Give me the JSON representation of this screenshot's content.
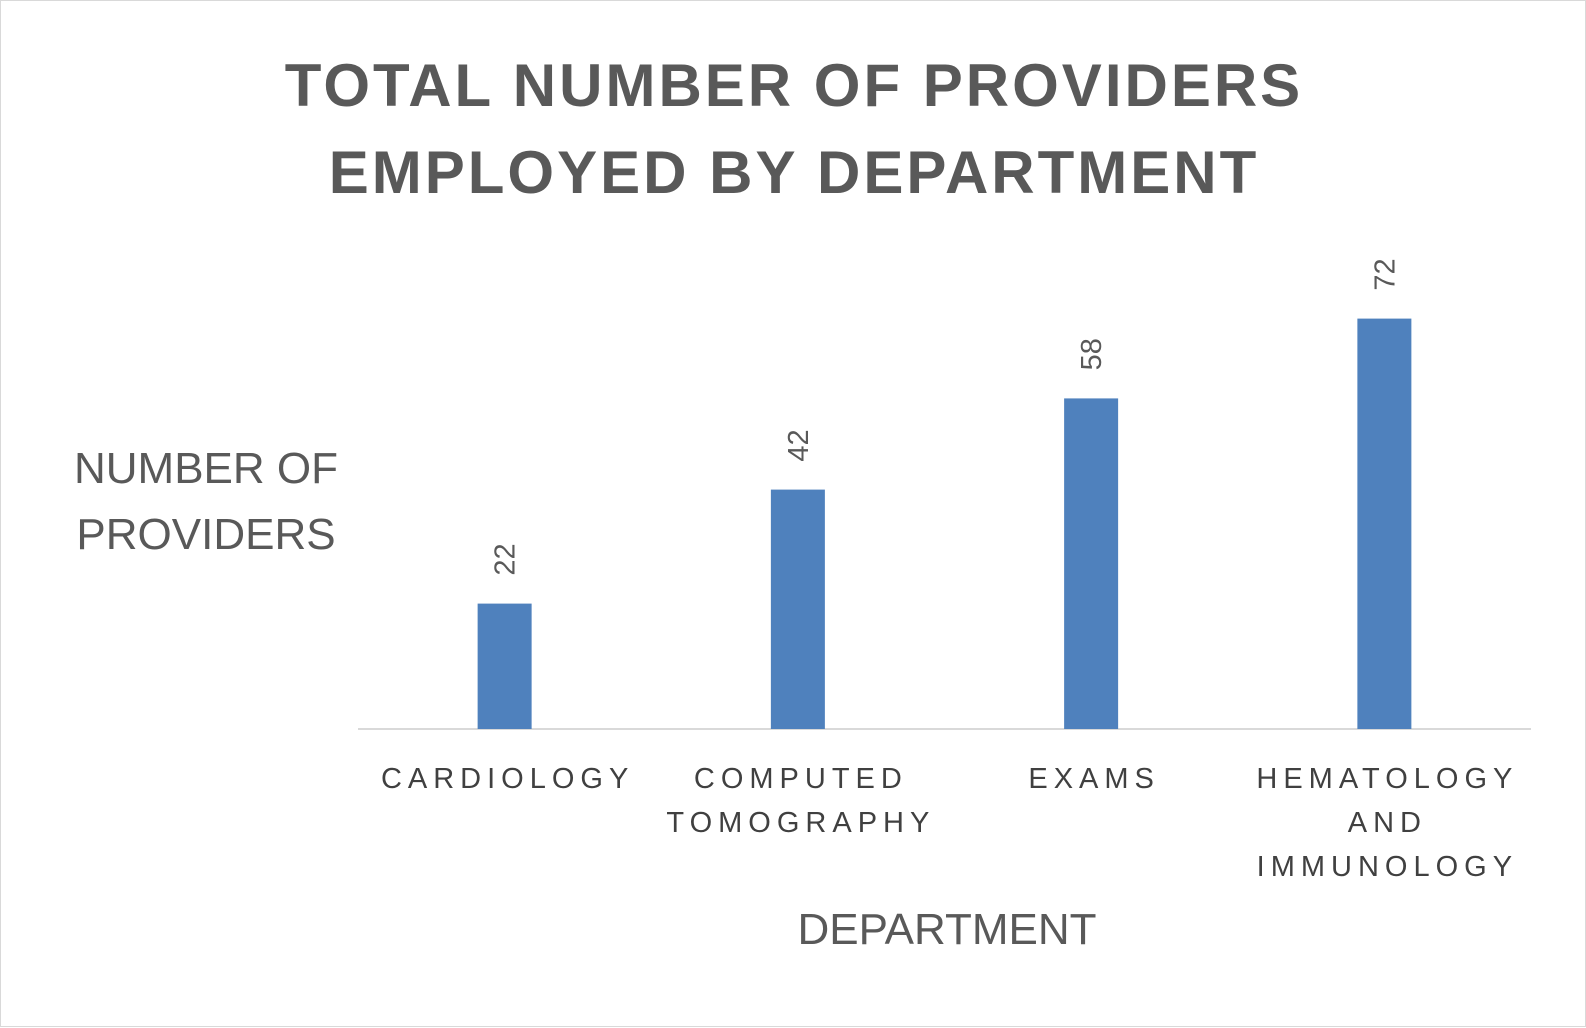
{
  "chart_data": {
    "type": "bar",
    "title": [
      "TOTAL NUMBER OF PROVIDERS",
      "EMPLOYED BY DEPARTMENT"
    ],
    "ylabel": [
      "NUMBER OF",
      "PROVIDERS"
    ],
    "xlabel": "DEPARTMENT",
    "categories": [
      [
        "CARDIOLOGY"
      ],
      [
        "COMPUTED",
        "TOMOGRAPHY"
      ],
      [
        "EXAMS"
      ],
      [
        "HEMATOLOGY",
        "AND",
        "IMMUNOLOGY"
      ]
    ],
    "values": [
      22,
      42,
      58,
      72
    ],
    "data_labels": [
      "22",
      "42",
      "58",
      "72"
    ],
    "ylim": [
      0,
      80
    ],
    "grid": false,
    "legend": "none",
    "colors": {
      "bar": "#4F81BD",
      "axis": "#d9d9d9",
      "text": "#595959"
    }
  }
}
